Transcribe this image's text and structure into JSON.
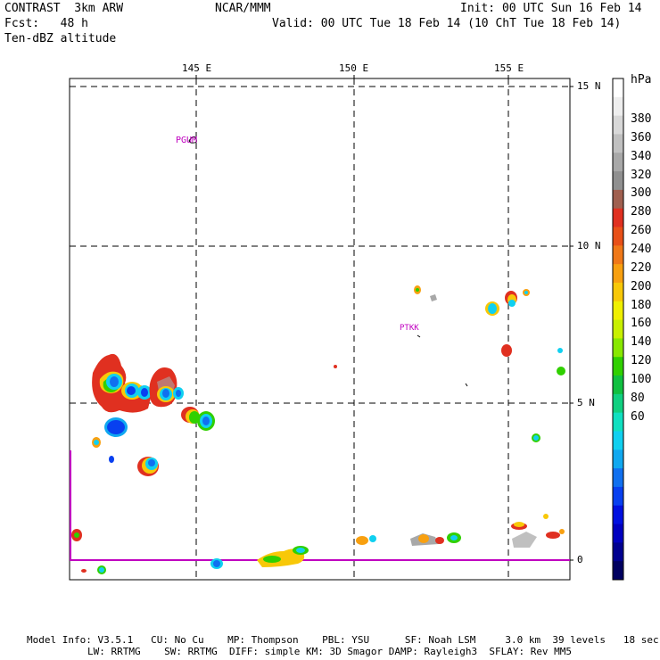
{
  "header": {
    "left_line1": "CONTRAST  3km ARW",
    "left_line2": "Fcst:   48 h",
    "left_line3": "Ten-dBZ altitude",
    "center": "NCAR/MMM",
    "right_line1": "Init: 00 UTC Sun 16 Feb 14",
    "right_line2": "Valid: 00 UTC Tue 18 Feb 14 (10 ChT Tue 18 Feb 14)"
  },
  "axes": {
    "lon_labels": [
      "145 E",
      "150 E",
      "155 E"
    ],
    "lat_labels": [
      "15 N",
      "10 N",
      "5 N",
      "0"
    ]
  },
  "stations": [
    "PGUM",
    "PTKK"
  ],
  "colorbar": {
    "unit": "hPa",
    "labels": [
      "380",
      "360",
      "340",
      "320",
      "300",
      "280",
      "260",
      "240",
      "220",
      "200",
      "180",
      "160",
      "140",
      "120",
      "100",
      "80",
      "60"
    ],
    "colors": [
      "#ffffff",
      "#eeeeee",
      "#d8d8d8",
      "#c0c0c0",
      "#a8a8a8",
      "#909090",
      "#a06050",
      "#e03020",
      "#e85018",
      "#f07818",
      "#f8a010",
      "#f8c808",
      "#f0f000",
      "#c8f000",
      "#88e800",
      "#30d000",
      "#10c040",
      "#10d080",
      "#10e0c0",
      "#10d0f0",
      "#10a8f0",
      "#1070f0",
      "#0840f0",
      "#0010e0",
      "#0000c0",
      "#000090",
      "#000060"
    ]
  },
  "footer": {
    "line1": "Model Info: V3.5.1   CU: No Cu    MP: Thompson    PBL: YSU      SF: Noah LSM     3.0 km  39 levels   18 sec",
    "line2": "LW: RRTMG    SW: RRTMG  DIFF: simple KM: 3D Smagor DAMP: Rayleigh3  SFLAY: Rev MM5"
  }
}
